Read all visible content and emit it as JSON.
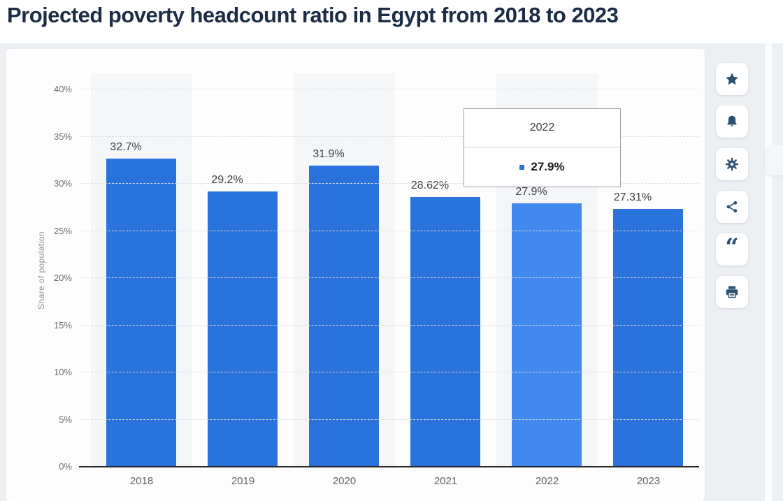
{
  "page": {
    "title": "Projected poverty headcount ratio in Egypt from 2018 to 2023"
  },
  "chart_data": {
    "type": "bar",
    "title": "Projected poverty headcount ratio in Egypt from 2018 to 2023",
    "categories": [
      "2018",
      "2019",
      "2020",
      "2021",
      "2022",
      "2023"
    ],
    "values": [
      32.7,
      29.2,
      31.9,
      28.62,
      27.9,
      27.31
    ],
    "value_labels": [
      "32.7%",
      "29.2%",
      "31.9%",
      "28.62%",
      "27.9%",
      "27.31%"
    ],
    "xlabel": "",
    "ylabel": "Share of population",
    "ylim": [
      0,
      40
    ],
    "yticks": [
      "0%",
      "5%",
      "10%",
      "15%",
      "20%",
      "25%",
      "30%",
      "35%",
      "40%"
    ],
    "grid": true,
    "legend": "none",
    "bar_color": "#2a72dc",
    "bar_color_hover": "#4189ee",
    "highlighted_index": 4
  },
  "tooltip": {
    "title": "2022",
    "value": "27.9%",
    "marker_color": "#2a72dc"
  },
  "toolbar": {
    "buttons": [
      {
        "icon": "star-icon",
        "action": "favorite"
      },
      {
        "icon": "bell-icon",
        "action": "alerts"
      },
      {
        "icon": "gear-icon",
        "action": "settings"
      },
      {
        "icon": "share-icon",
        "action": "share"
      },
      {
        "icon": "quote-icon",
        "action": "cite"
      },
      {
        "icon": "print-icon",
        "action": "print"
      }
    ]
  },
  "colors": {
    "title_text": "#1b2c44",
    "icon": "#2c5170",
    "page_background": "#edf0f3",
    "card_background": "#fdfdfe"
  }
}
